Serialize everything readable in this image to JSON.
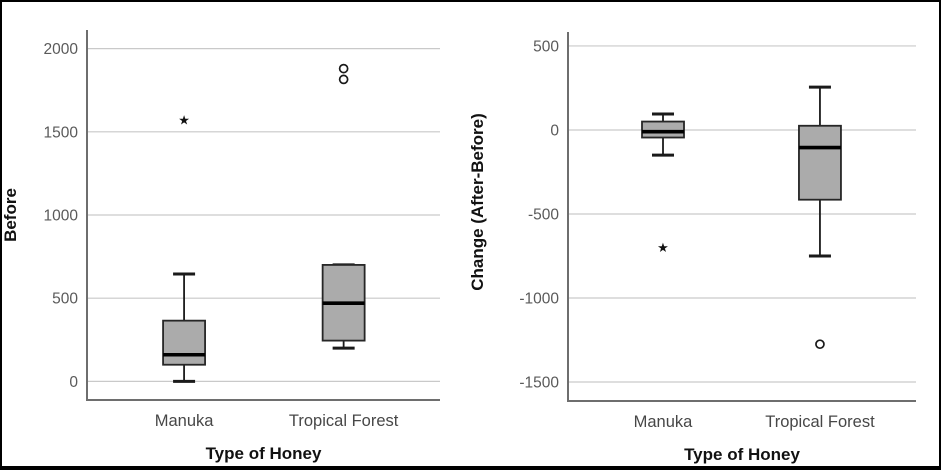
{
  "figure": {
    "description": "Two side-by-side SPSS-style boxplots comparing honey types"
  },
  "style": {
    "figure_bg": "#ffffff",
    "border_color": "#000000",
    "grid_color": "#c9c9c9",
    "axis_color": "#6e6e6e",
    "line_color": "#1a1a1a",
    "box_fill": "#ababab",
    "box_stroke": "#262626",
    "median_color": "#000000",
    "tick_color": "#5a5a5a",
    "category_color": "#474747"
  },
  "chart_data": [
    {
      "type": "boxplot",
      "title": "",
      "xlabel": "Type of Honey",
      "ylabel": "Before",
      "categories": [
        "Manuka",
        "Tropical Forest"
      ],
      "yticks": [
        0,
        500,
        1000,
        1500,
        2000
      ],
      "ylim": [
        -112,
        2112
      ],
      "grid": "horizontal-only",
      "legend": "none",
      "series": [
        {
          "category": "Manuka",
          "whisker_low": 0,
          "q1": 100,
          "median": 160,
          "q3": 365,
          "whisker_high": 645,
          "outliers": [],
          "extremes": [
            1570
          ]
        },
        {
          "category": "Tropical Forest",
          "whisker_low": 200,
          "q1": 245,
          "median": 470,
          "q3": 700,
          "whisker_high": 700,
          "outliers": [
            1815,
            1880
          ],
          "extremes": []
        }
      ]
    },
    {
      "type": "boxplot",
      "title": "",
      "xlabel": "Type of Honey",
      "ylabel": "Change (After-Before)",
      "categories": [
        "Manuka",
        "Tropical Forest"
      ],
      "yticks": [
        -1500,
        -1000,
        -500,
        0,
        500
      ],
      "ylim": [
        -1613,
        583
      ],
      "grid": "horizontal-only",
      "legend": "none",
      "series": [
        {
          "category": "Manuka",
          "whisker_low": -150,
          "q1": -45,
          "median": -10,
          "q3": 50,
          "whisker_high": 95,
          "outliers": [],
          "extremes": [
            -700
          ]
        },
        {
          "category": "Tropical Forest",
          "whisker_low": -750,
          "q1": -415,
          "median": -105,
          "q3": 25,
          "whisker_high": 255,
          "outliers": [
            -1275
          ],
          "extremes": []
        }
      ]
    }
  ]
}
